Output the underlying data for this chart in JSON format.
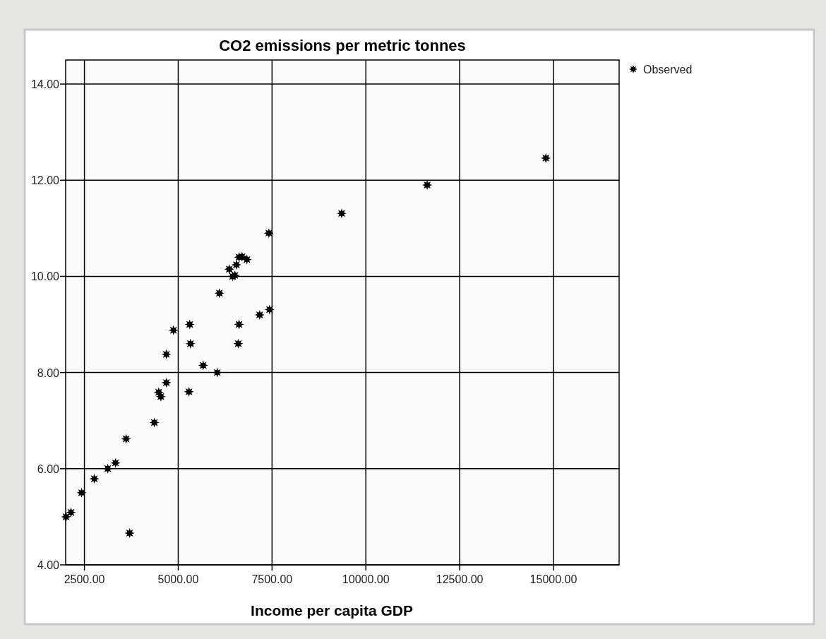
{
  "chart_data": {
    "type": "scatter",
    "title": "CO2 emissions per metric tonnes",
    "xlabel": "Income per capita GDP",
    "x": [
      2010,
      2142,
      2425,
      2764,
      3121,
      3329,
      3611,
      3705,
      4364,
      4480,
      4537,
      4684,
      4684,
      4873,
      5287,
      5325,
      5306,
      5664,
      6040,
      6097,
      6360,
      6450,
      6510,
      6550,
      6620,
      6700,
      6830,
      6600,
      6620,
      7170,
      7434,
      7415,
      9355,
      11634,
      14797
    ],
    "series": [
      {
        "name": "Observed",
        "color": "#000000",
        "values": [
          5.0,
          5.09,
          5.5,
          5.79,
          6.0,
          6.12,
          6.62,
          4.66,
          6.96,
          7.59,
          7.5,
          7.79,
          8.38,
          8.88,
          7.6,
          8.6,
          9.0,
          8.15,
          8.0,
          9.65,
          10.15,
          10.0,
          10.02,
          10.24,
          10.4,
          10.41,
          10.35,
          8.6,
          9.0,
          9.2,
          9.31,
          10.9,
          11.31,
          11.9,
          12.46
        ]
      }
    ],
    "xlim": [
      2000,
      16750
    ],
    "ylim": [
      4,
      14.5
    ],
    "xticks": [
      {
        "value": 2500,
        "label": "2500.00"
      },
      {
        "value": 5000,
        "label": "5000.00"
      },
      {
        "value": 7500,
        "label": "7500.00"
      },
      {
        "value": 10000,
        "label": "10000.00"
      },
      {
        "value": 12500,
        "label": "12500.00"
      },
      {
        "value": 15000,
        "label": "15000.00"
      }
    ],
    "yticks": [
      {
        "value": 4,
        "label": "4.00"
      },
      {
        "value": 6,
        "label": "6.00"
      },
      {
        "value": 8,
        "label": "8.00"
      },
      {
        "value": 10,
        "label": "10.00"
      },
      {
        "value": 12,
        "label": "12.00"
      },
      {
        "value": 14,
        "label": "14.00"
      }
    ],
    "grid": true,
    "legend": "top right",
    "marker": "star"
  }
}
